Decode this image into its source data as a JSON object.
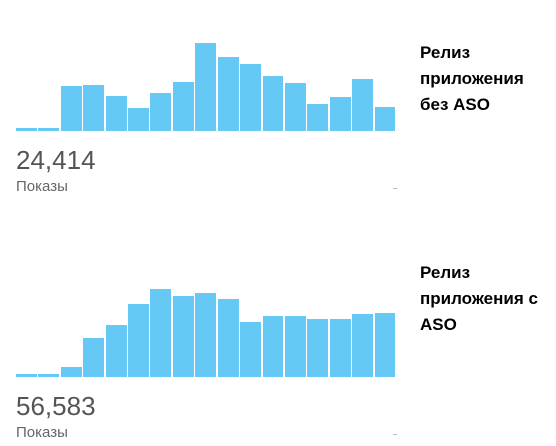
{
  "chart_data": [
    {
      "type": "bar",
      "color": "#66c8f4",
      "values": [
        3,
        3,
        45,
        46,
        35,
        23,
        38,
        49,
        88,
        74,
        67,
        55,
        48,
        27,
        34,
        52,
        24
      ],
      "total": {
        "value": 24414,
        "label": "24,414"
      },
      "metric": "Показы",
      "caption": "Релиз приложения без ASO"
    },
    {
      "type": "bar",
      "color": "#66c8f4",
      "values": [
        3,
        3,
        10,
        39,
        52,
        73,
        88,
        81,
        84,
        78,
        55,
        61,
        61,
        58,
        58,
        63,
        64
      ],
      "total": {
        "value": 56583,
        "label": "56,583"
      },
      "metric": "Показы",
      "caption": "Релиз приложения с ASO"
    }
  ]
}
